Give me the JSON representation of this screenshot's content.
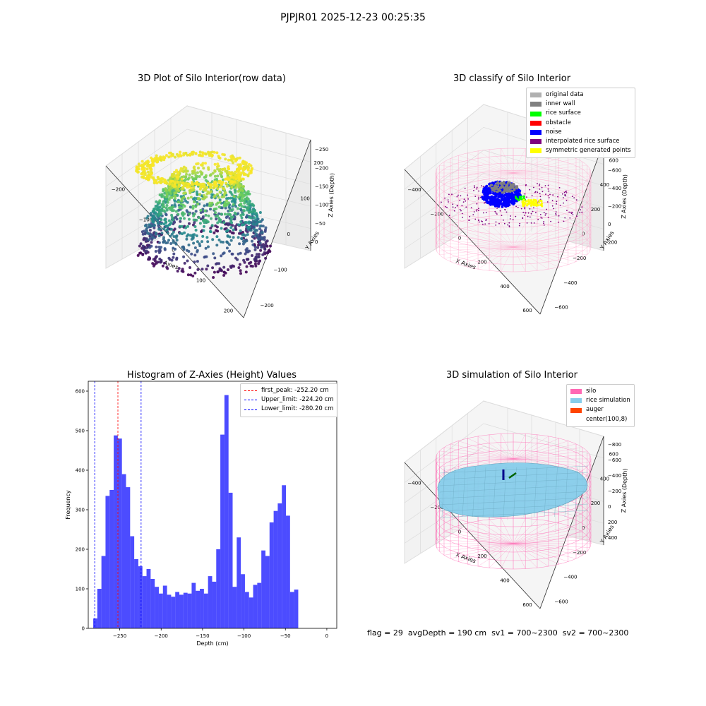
{
  "suptitle": "PJPJR01 2025-12-23 00:25:35",
  "panels": {
    "raw": {
      "title": "3D Plot of Silo Interior(row data)",
      "xlabel": "X Axies",
      "ylabel": "Y Axies",
      "zlabel": "Z Axies (Depth)",
      "xticks": [
        "−200",
        "−100",
        "0",
        "100",
        "200"
      ],
      "yticks": [
        "−200",
        "−100",
        "0",
        "100",
        "200"
      ],
      "zticks": [
        "0",
        "−50",
        "−100",
        "−150",
        "−200",
        "−250"
      ]
    },
    "classify": {
      "title": "3D classify of Silo Interior",
      "xlabel": "X Axies",
      "ylabel": "Y Axies",
      "zlabel": "Z Axies (Depth)",
      "xticks": [
        "−400",
        "−200",
        "0",
        "200",
        "400",
        "600"
      ],
      "yticks": [
        "−600",
        "−400",
        "−200",
        "0",
        "200",
        "400",
        "600"
      ],
      "zticks": [
        "200",
        "0",
        "−200",
        "−400",
        "−600",
        "−800"
      ],
      "legend": [
        {
          "label": "original data",
          "color": "#b0b0b0"
        },
        {
          "label": "inner wall",
          "color": "#808080"
        },
        {
          "label": "rice surface",
          "color": "#00ff00"
        },
        {
          "label": "obstacle",
          "color": "#ff0000"
        },
        {
          "label": "noise",
          "color": "#0000ff"
        },
        {
          "label": "interpolated rice surface",
          "color": "#800080"
        },
        {
          "label": "symmetric generated points",
          "color": "#ffff00"
        }
      ]
    },
    "simulation": {
      "title": "3D simulation of Silo Interior",
      "xlabel": "X Axies",
      "ylabel": "Y Axies",
      "zlabel": "Z Axies (Depth)",
      "xticks": [
        "−400",
        "−200",
        "0",
        "200",
        "400",
        "600"
      ],
      "yticks": [
        "−600",
        "−400",
        "−200",
        "0",
        "200",
        "400",
        "600"
      ],
      "zticks": [
        "400",
        "200",
        "0",
        "−200",
        "−400",
        "−600",
        "−800"
      ],
      "legend": [
        {
          "label": "silo",
          "color": "#ff69b4"
        },
        {
          "label": "rice simulation",
          "color": "#87ceeb"
        },
        {
          "label": "auger",
          "color": "#ff4500"
        },
        {
          "label": "center(100,8)",
          "color": ""
        }
      ]
    }
  },
  "chart_data": {
    "type": "bar",
    "title": "Histogram of Z-Axies (Height) Values",
    "xlabel": "Depth (cm)",
    "ylabel": "Frequency",
    "xlim": [
      -288,
      12
    ],
    "ylim": [
      0,
      625
    ],
    "xticks": [
      -250,
      -200,
      -150,
      -100,
      -50,
      0
    ],
    "yticks": [
      0,
      100,
      200,
      300,
      400,
      500,
      600
    ],
    "bin_start": -282,
    "bin_width": 4.95,
    "values": [
      25,
      100,
      183,
      335,
      350,
      488,
      480,
      390,
      357,
      233,
      175,
      157,
      132,
      150,
      125,
      105,
      88,
      108,
      85,
      80,
      92,
      85,
      90,
      88,
      115,
      95,
      100,
      88,
      132,
      118,
      200,
      490,
      590,
      343,
      105,
      230,
      137,
      92,
      78,
      110,
      115,
      197,
      183,
      268,
      297,
      316,
      362,
      285,
      92,
      98
    ],
    "bar_color": "#0000ff",
    "vlines": [
      {
        "label": "first_peak: -252.20 cm",
        "x": -252.2,
        "color": "#ff0000"
      },
      {
        "label": "Upper_limit: -224.20 cm",
        "x": -224.2,
        "color": "#0000ff"
      },
      {
        "label": "Lower_limit: -280.20 cm",
        "x": -280.2,
        "color": "#0000ff"
      }
    ],
    "legend_position": "top-right"
  },
  "status": {
    "flag": "flag = 29",
    "avg": "avgDepth = 190 cm",
    "sv1": "sv1 = 700~2300",
    "sv2": "sv2 = 700~2300"
  }
}
